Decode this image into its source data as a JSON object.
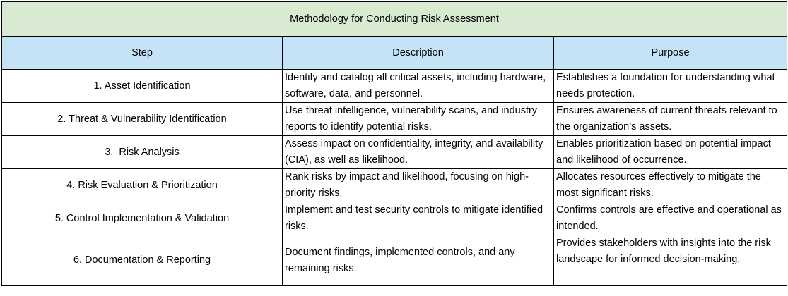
{
  "title": "Methodology for Conducting Risk Assessment",
  "colors": {
    "title_bg": "#d9ead3",
    "header_bg": "#c5e3f6",
    "border": "#000000"
  },
  "headers": [
    "Step",
    "Description",
    "Purpose"
  ],
  "rows": [
    {
      "step": "1. Asset Identification",
      "description": "Identify and catalog all critical assets, including hardware, software, data, and personnel.",
      "purpose": "Establishes a foundation for understanding what needs protection."
    },
    {
      "step": "2. Threat & Vulnerability Identification",
      "description": "Use threat intelligence, vulnerability scans, and industry reports to identify potential risks.",
      "purpose": "Ensures awareness of current threats relevant to the organization’s assets."
    },
    {
      "step": "3.  Risk Analysis",
      "description": "Assess impact on confidentiality, integrity, and availability (CIA), as well as likelihood.",
      "purpose": "Enables prioritization based on potential impact and likelihood of occurrence."
    },
    {
      "step": "4. Risk Evaluation & Prioritization",
      "description": "Rank risks by impact and likelihood, focusing on high-priority risks.",
      "purpose": "Allocates resources effectively to mitigate the most significant risks."
    },
    {
      "step": "5. Control Implementation & Validation",
      "description": "Implement and test security controls to mitigate identified risks.",
      "purpose": "Confirms controls are effective and operational as intended."
    },
    {
      "step": "6. Documentation & Reporting",
      "description": "Document findings, implemented controls, and any remaining risks.",
      "purpose": "Provides stakeholders with insights into the risk landscape for informed decision-making."
    }
  ]
}
